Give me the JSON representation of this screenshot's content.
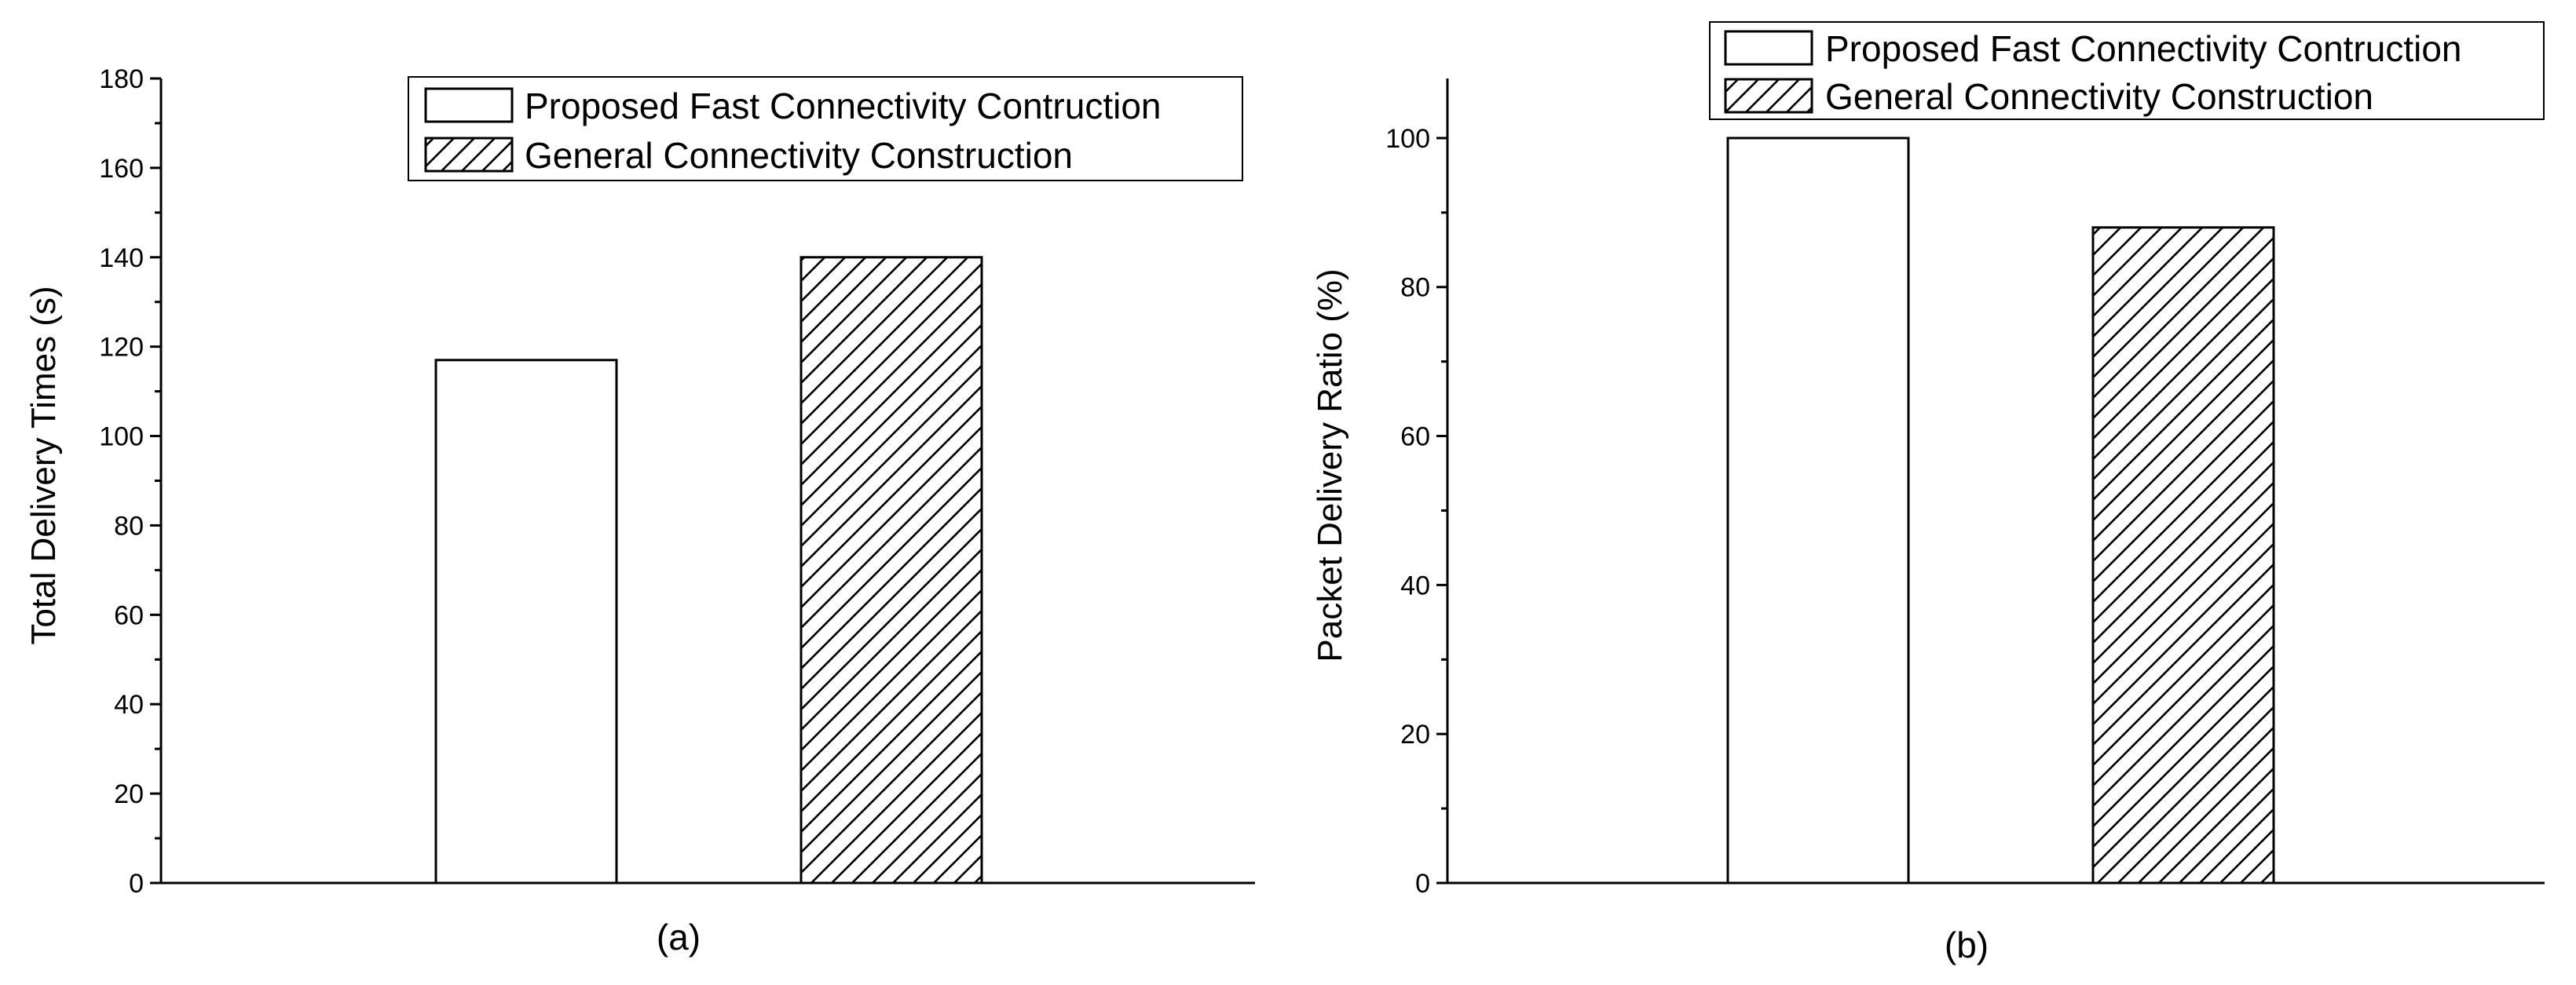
{
  "colors": {
    "bar_fill": "#ffffff",
    "bar_stroke": "#000000",
    "hatch": "#000000",
    "background": "#ffffff"
  },
  "chart_data": [
    {
      "type": "bar",
      "panel_label": "(a)",
      "title": "",
      "xlabel": "",
      "ylabel": "Total Delivery Times (s)",
      "ylim": [
        0,
        180
      ],
      "yticks": [
        0,
        20,
        40,
        60,
        80,
        100,
        120,
        140,
        160,
        180
      ],
      "grid": false,
      "legend_position": "top-right",
      "series": [
        {
          "name": "Proposed Fast Connectivity Contruction",
          "pattern": "none",
          "values": [
            117
          ]
        },
        {
          "name": "General Connectivity Construction",
          "pattern": "diagonal-hatch",
          "values": [
            140
          ]
        }
      ]
    },
    {
      "type": "bar",
      "panel_label": "(b)",
      "title": "",
      "xlabel": "",
      "ylabel": "Packet Delivery Ratio (%)",
      "ylim": [
        0,
        108
      ],
      "yticks": [
        0,
        20,
        40,
        60,
        80,
        100
      ],
      "grid": false,
      "legend_position": "top-right",
      "series": [
        {
          "name": "Proposed Fast Connectivity Contruction",
          "pattern": "none",
          "values": [
            100
          ]
        },
        {
          "name": "General Connectivity Construction",
          "pattern": "diagonal-hatch",
          "values": [
            88
          ]
        }
      ]
    }
  ]
}
